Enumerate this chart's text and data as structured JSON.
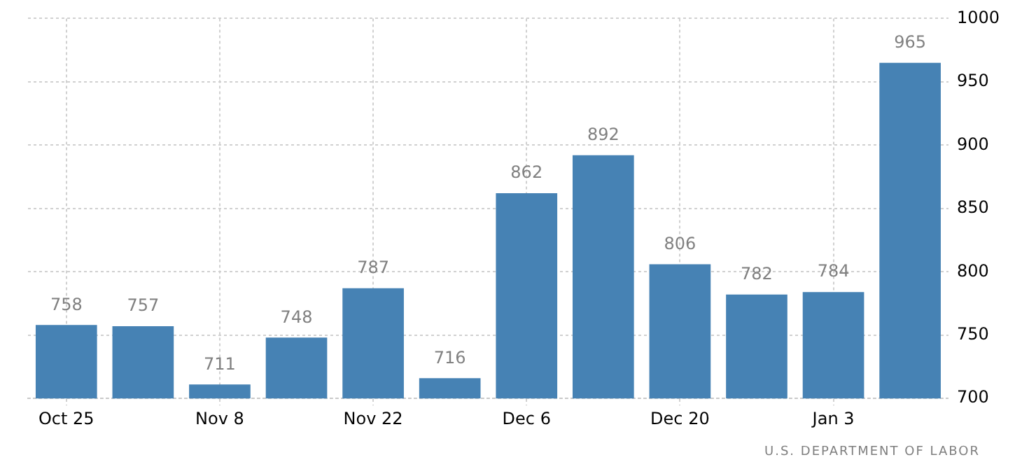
{
  "chart_data": {
    "type": "bar",
    "categories": [
      "Oct 25",
      null,
      "Nov 8",
      null,
      "Nov 22",
      null,
      "Dec 6",
      null,
      "Dec 20",
      null,
      "Jan 3",
      null
    ],
    "values": [
      758,
      757,
      711,
      748,
      787,
      716,
      862,
      892,
      806,
      782,
      784,
      965
    ],
    "color": "#4682b4",
    "ylim": [
      700,
      1000
    ],
    "yticks": [
      700,
      750,
      800,
      850,
      900,
      950,
      1000
    ],
    "grid": true,
    "legend": false,
    "data_labels": true,
    "annotations": [
      "U.S. DEPARTMENT OF LABOR"
    ]
  }
}
